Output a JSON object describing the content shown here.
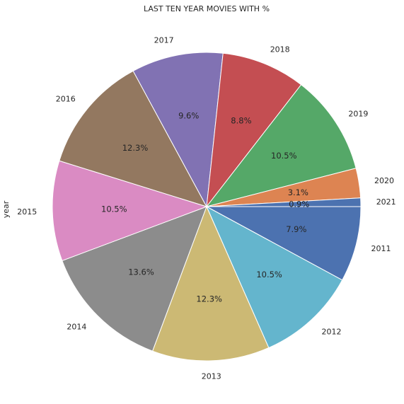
{
  "chart_data": {
    "type": "pie",
    "title": "LAST TEN YEAR MOVIES WITH %",
    "ylabel": "year",
    "categories": [
      "2011",
      "2012",
      "2013",
      "2014",
      "2015",
      "2016",
      "2017",
      "2018",
      "2019",
      "2020",
      "2021"
    ],
    "values": [
      7.9,
      10.5,
      12.3,
      13.6,
      10.5,
      12.3,
      9.6,
      8.8,
      10.5,
      3.1,
      0.9
    ],
    "value_labels": [
      "7.9%",
      "10.5%",
      "12.3%",
      "13.6%",
      "10.5%",
      "12.3%",
      "9.6%",
      "8.8%",
      "10.5%",
      "3.1%",
      "0.9%"
    ],
    "colors": [
      "#4c72b0",
      "#64b5cd",
      "#ccb974",
      "#8c8c8c",
      "#da8bc3",
      "#937860",
      "#8172b3",
      "#c44e52",
      "#55a868",
      "#dd8452",
      "#4c72b0"
    ],
    "start_angle": 0,
    "direction": "clockwise",
    "legend": "none"
  }
}
